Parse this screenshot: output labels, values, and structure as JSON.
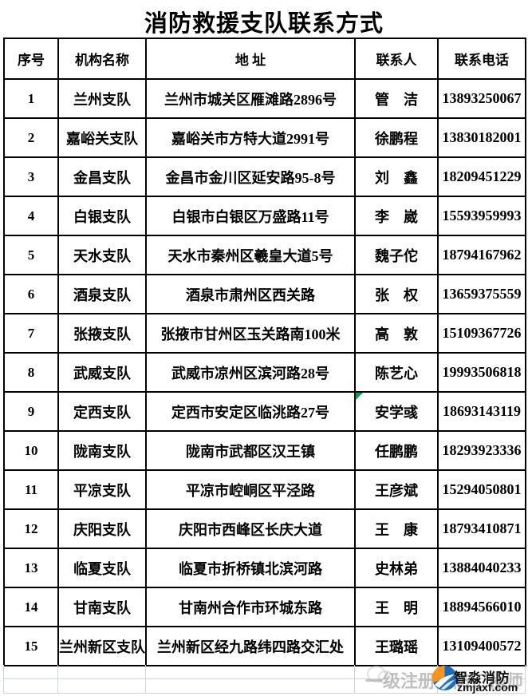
{
  "title": "消防救援支队联系方式",
  "table": {
    "headers": {
      "no": "序号",
      "org": "机构名称",
      "addr": "地 址",
      "contact": "联系人",
      "phone": "联系电话"
    },
    "rows": [
      {
        "no": "1",
        "org": "兰州支队",
        "addr": "兰州市城关区雁滩路2896号",
        "contact": "管　洁",
        "phone": "13893250067",
        "flag": false
      },
      {
        "no": "2",
        "org": "嘉峪关支队",
        "addr": "嘉峪关市方特大道2991号",
        "contact": "徐鹏程",
        "phone": "13830182001",
        "flag": false
      },
      {
        "no": "3",
        "org": "金昌支队",
        "addr": "金昌市金川区延安路95-8号",
        "contact": "刘　鑫",
        "phone": "18209451229",
        "flag": false
      },
      {
        "no": "4",
        "org": "白银支队",
        "addr": "白银市白银区万盛路11号",
        "contact": "李　崴",
        "phone": "15593959993",
        "flag": false
      },
      {
        "no": "5",
        "org": "天水支队",
        "addr": "天水市秦州区羲皇大道5号",
        "contact": "魏子佗",
        "phone": "18794167962",
        "flag": false
      },
      {
        "no": "6",
        "org": "酒泉支队",
        "addr": "酒泉市肃州区西关路",
        "contact": "张　权",
        "phone": "13659375559",
        "flag": false
      },
      {
        "no": "7",
        "org": "张掖支队",
        "addr": "张掖市甘州区玉关路南100米",
        "contact": "高　敦",
        "phone": "15109367726",
        "flag": false
      },
      {
        "no": "8",
        "org": "武威支队",
        "addr": "武威市凉州区滨河路28号",
        "contact": "陈艺心",
        "phone": "19993506818",
        "flag": false
      },
      {
        "no": "9",
        "org": "定西支队",
        "addr": "定西市安定区临洮路27号",
        "contact": "安学彧",
        "phone": "18693143119",
        "flag": true
      },
      {
        "no": "10",
        "org": "陇南支队",
        "addr": "陇南市武都区汉王镇",
        "contact": "任鹏鹏",
        "phone": "18293923336",
        "flag": false
      },
      {
        "no": "11",
        "org": "平凉支队",
        "addr": "平凉市崆峒区平泾路",
        "contact": "王彦斌",
        "phone": "15294050801",
        "flag": false
      },
      {
        "no": "12",
        "org": "庆阳支队",
        "addr": "庆阳市西峰区长庆大道",
        "contact": "王　康",
        "phone": "18793410871",
        "flag": false
      },
      {
        "no": "13",
        "org": "临夏支队",
        "addr": "临夏市折桥镇北滨河路",
        "contact": "史林弟",
        "phone": "13884040233",
        "flag": false
      },
      {
        "no": "14",
        "org": "甘南支队",
        "addr": "甘南州合作市环城东路",
        "contact": "王　明",
        "phone": "18894566010",
        "flag": false
      },
      {
        "no": "15",
        "org": "兰州新区支队",
        "addr": "兰州新区经九路纬四路交汇处",
        "contact": "王璐瑶",
        "phone": "13109400572",
        "flag": false
      }
    ]
  },
  "watermark": {
    "ghost_text": "一级注册消防工程师",
    "brand": "智淼消防",
    "site": "zmjaxf.com"
  },
  "colors": {
    "flag_green": "#00a651",
    "logo_orange": "#f7941d",
    "logo_blue": "#1e6bb8",
    "grid_faint": "#ccd6e3",
    "border_black": "#000000"
  }
}
